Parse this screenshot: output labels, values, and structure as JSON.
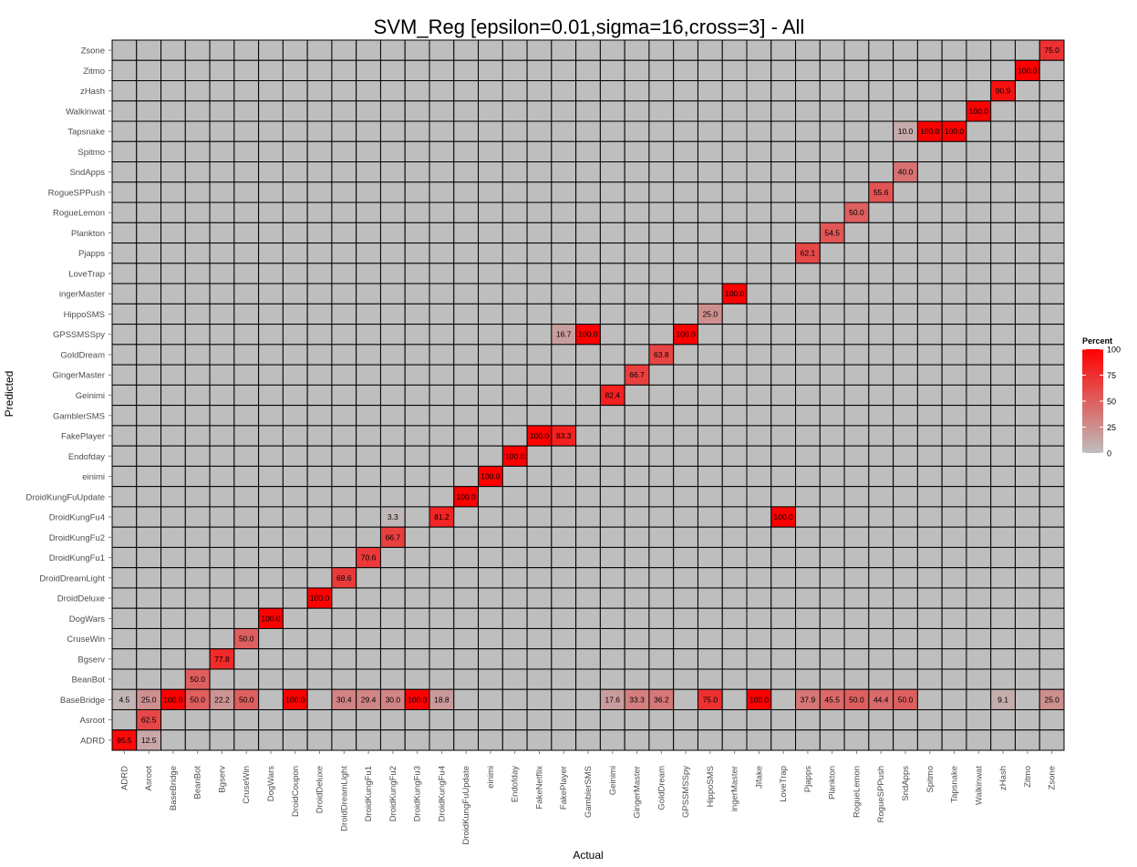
{
  "chart_data": {
    "type": "heatmap",
    "title": "SVM_Reg [epsilon=0.01,sigma=16,cross=3] - All",
    "xlabel": "Actual",
    "ylabel": "Predicted",
    "x_categories": [
      "ADRD",
      "Asroot",
      "BaseBridge",
      "BeanBot",
      "Bgserv",
      "CruseWin",
      "DogWars",
      "DroidCoupon",
      "DroidDeluxe",
      "DroidDreamLight",
      "DroidKungFu1",
      "DroidKungFu2",
      "DroidKungFu3",
      "DroidKungFu4",
      "DroidKungFuUpdate",
      "einimi",
      "Endofday",
      "FakeNetflix",
      "FakePlayer",
      "GamblerSMS",
      "Geinimi",
      "GingerMaster",
      "GoldDream",
      "GPSSMSSpy",
      "HippoSMS",
      "ingerMaster",
      "Jifake",
      "LoveTrap",
      "Pjapps",
      "Plankton",
      "RogueLemon",
      "RogueSPPush",
      "SndApps",
      "Spitmo",
      "Tapsnake",
      "Walkinwat",
      "zHash",
      "Zitmo",
      "Zsone"
    ],
    "y_categories": [
      "Zsone",
      "Zitmo",
      "zHash",
      "Walkinwat",
      "Tapsnake",
      "Spitmo",
      "SndApps",
      "RogueSPPush",
      "RogueLemon",
      "Plankton",
      "Pjapps",
      "LoveTrap",
      "ingerMaster",
      "HippoSMS",
      "GPSSMSSpy",
      "GoldDream",
      "GingerMaster",
      "Geinimi",
      "GamblerSMS",
      "FakePlayer",
      "Endofday",
      "einimi",
      "DroidKungFuUpdate",
      "DroidKungFu4",
      "DroidKungFu2",
      "DroidKungFu1",
      "DroidDreamLight",
      "DroidDeluxe",
      "DogWars",
      "CruseWin",
      "Bgserv",
      "BeanBot",
      "BaseBridge",
      "Asroot",
      "ADRD"
    ],
    "cells": [
      {
        "x": "Zsone",
        "y": "Zsone",
        "v": "75.0"
      },
      {
        "x": "Zitmo",
        "y": "Zitmo",
        "v": "100.0"
      },
      {
        "x": "zHash",
        "y": "zHash",
        "v": "90.9"
      },
      {
        "x": "Walkinwat",
        "y": "Walkinwat",
        "v": "100.0"
      },
      {
        "x": "SndApps",
        "y": "Tapsnake",
        "v": "10.0"
      },
      {
        "x": "Spitmo",
        "y": "Tapsnake",
        "v": "100.0"
      },
      {
        "x": "Tapsnake",
        "y": "Tapsnake",
        "v": "100.0"
      },
      {
        "x": "SndApps",
        "y": "SndApps",
        "v": "40.0"
      },
      {
        "x": "RogueSPPush",
        "y": "RogueSPPush",
        "v": "55.6"
      },
      {
        "x": "RogueLemon",
        "y": "RogueLemon",
        "v": "50.0"
      },
      {
        "x": "Plankton",
        "y": "Plankton",
        "v": "54.5"
      },
      {
        "x": "Pjapps",
        "y": "Pjapps",
        "v": "62.1"
      },
      {
        "x": "ingerMaster",
        "y": "ingerMaster",
        "v": "100.0"
      },
      {
        "x": "HippoSMS",
        "y": "HippoSMS",
        "v": "25.0"
      },
      {
        "x": "FakePlayer",
        "y": "GPSSMSSpy",
        "v": "16.7"
      },
      {
        "x": "GamblerSMS",
        "y": "GPSSMSSpy",
        "v": "100.0"
      },
      {
        "x": "GPSSMSSpy",
        "y": "GPSSMSSpy",
        "v": "100.0"
      },
      {
        "x": "GoldDream",
        "y": "GoldDream",
        "v": "63.8"
      },
      {
        "x": "GingerMaster",
        "y": "GingerMaster",
        "v": "66.7"
      },
      {
        "x": "Geinimi",
        "y": "Geinimi",
        "v": "82.4"
      },
      {
        "x": "FakeNetflix",
        "y": "FakePlayer",
        "v": "100.0"
      },
      {
        "x": "FakePlayer",
        "y": "FakePlayer",
        "v": "83.3"
      },
      {
        "x": "Endofday",
        "y": "Endofday",
        "v": "100.0"
      },
      {
        "x": "einimi",
        "y": "einimi",
        "v": "100.0"
      },
      {
        "x": "DroidKungFuUpdate",
        "y": "DroidKungFuUpdate",
        "v": "100.0"
      },
      {
        "x": "DroidKungFu2",
        "y": "DroidKungFu4",
        "v": "3.3"
      },
      {
        "x": "DroidKungFu4",
        "y": "DroidKungFu4",
        "v": "81.2"
      },
      {
        "x": "LoveTrap",
        "y": "DroidKungFu4",
        "v": "100.0"
      },
      {
        "x": "DroidKungFu2",
        "y": "DroidKungFu2",
        "v": "66.7"
      },
      {
        "x": "DroidKungFu1",
        "y": "DroidKungFu1",
        "v": "70.6"
      },
      {
        "x": "DroidDreamLight",
        "y": "DroidDreamLight",
        "v": "69.6"
      },
      {
        "x": "DroidDeluxe",
        "y": "DroidDeluxe",
        "v": "100.0"
      },
      {
        "x": "DogWars",
        "y": "DogWars",
        "v": "100.0"
      },
      {
        "x": "CruseWin",
        "y": "CruseWin",
        "v": "50.0"
      },
      {
        "x": "Bgserv",
        "y": "Bgserv",
        "v": "77.8"
      },
      {
        "x": "BeanBot",
        "y": "BeanBot",
        "v": "50.0"
      },
      {
        "x": "ADRD",
        "y": "BaseBridge",
        "v": "4.5"
      },
      {
        "x": "Asroot",
        "y": "BaseBridge",
        "v": "25.0"
      },
      {
        "x": "BaseBridge",
        "y": "BaseBridge",
        "v": "100.0"
      },
      {
        "x": "BeanBot",
        "y": "BaseBridge",
        "v": "50.0"
      },
      {
        "x": "Bgserv",
        "y": "BaseBridge",
        "v": "22.2"
      },
      {
        "x": "CruseWin",
        "y": "BaseBridge",
        "v": "50.0"
      },
      {
        "x": "DroidCoupon",
        "y": "BaseBridge",
        "v": "100.0"
      },
      {
        "x": "DroidDreamLight",
        "y": "BaseBridge",
        "v": "30.4"
      },
      {
        "x": "DroidKungFu1",
        "y": "BaseBridge",
        "v": "29.4"
      },
      {
        "x": "DroidKungFu2",
        "y": "BaseBridge",
        "v": "30.0"
      },
      {
        "x": "DroidKungFu3",
        "y": "BaseBridge",
        "v": "100.0"
      },
      {
        "x": "DroidKungFu4",
        "y": "BaseBridge",
        "v": "18.8"
      },
      {
        "x": "Geinimi",
        "y": "BaseBridge",
        "v": "17.6"
      },
      {
        "x": "GingerMaster",
        "y": "BaseBridge",
        "v": "33.3"
      },
      {
        "x": "GoldDream",
        "y": "BaseBridge",
        "v": "36.2"
      },
      {
        "x": "HippoSMS",
        "y": "BaseBridge",
        "v": "75.0"
      },
      {
        "x": "Jifake",
        "y": "BaseBridge",
        "v": "100.0"
      },
      {
        "x": "Pjapps",
        "y": "BaseBridge",
        "v": "37.9"
      },
      {
        "x": "Plankton",
        "y": "BaseBridge",
        "v": "45.5"
      },
      {
        "x": "RogueLemon",
        "y": "BaseBridge",
        "v": "50.0"
      },
      {
        "x": "RogueSPPush",
        "y": "BaseBridge",
        "v": "44.4"
      },
      {
        "x": "SndApps",
        "y": "BaseBridge",
        "v": "50.0"
      },
      {
        "x": "zHash",
        "y": "BaseBridge",
        "v": "9.1"
      },
      {
        "x": "Zsone",
        "y": "BaseBridge",
        "v": "25.0"
      },
      {
        "x": "Asroot",
        "y": "Asroot",
        "v": "62.5"
      },
      {
        "x": "ADRD",
        "y": "ADRD",
        "v": "95.5"
      },
      {
        "x": "Asroot",
        "y": "ADRD",
        "v": "12.5"
      }
    ],
    "legend": {
      "title": "Percent",
      "ticks": [
        100,
        75,
        50,
        25,
        0
      ],
      "placement": "right",
      "range": [
        0,
        100
      ]
    },
    "colors": {
      "low": "#bebebe",
      "high": "#ff0000",
      "background": "#bebebe",
      "cell_border": "#000000"
    }
  }
}
